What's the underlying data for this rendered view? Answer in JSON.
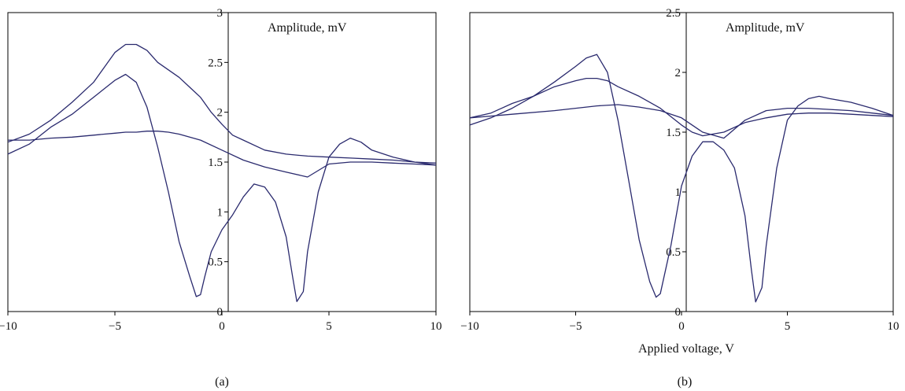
{
  "chart_data": [
    {
      "type": "line",
      "panel_label": "(a)",
      "annotation": "Amplitude, mV",
      "xlabel": "",
      "ylabel": "",
      "xlim": [
        -10,
        10
      ],
      "ylim": [
        0,
        3
      ],
      "xticks": [
        -10,
        -5,
        0,
        5,
        10
      ],
      "xtick_labels": [
        "−10",
        "−5",
        "0",
        "5",
        "10"
      ],
      "yticks": [
        0,
        0.5,
        1,
        1.5,
        2,
        2.5,
        3
      ],
      "ytick_labels": [
        "0",
        "0.5",
        "1",
        "1.5",
        "2",
        "2.5",
        "3"
      ],
      "grid": false,
      "line_color": "#2a2a6e",
      "series": [
        {
          "x": [
            -10,
            -9,
            -8,
            -7,
            -6,
            -5.5,
            -5,
            -4.5,
            -4,
            -3.5,
            -3,
            -2.5,
            -2,
            -1,
            0,
            1,
            2,
            3,
            4,
            5,
            6,
            7,
            8,
            9,
            10
          ],
          "y": [
            1.72,
            1.72,
            1.74,
            1.75,
            1.77,
            1.78,
            1.79,
            1.8,
            1.8,
            1.81,
            1.81,
            1.8,
            1.78,
            1.72,
            1.62,
            1.52,
            1.45,
            1.4,
            1.35,
            1.48,
            1.5,
            1.5,
            1.49,
            1.48,
            1.47
          ]
        },
        {
          "x": [
            -10,
            -9,
            -8,
            -7,
            -6,
            -5.5,
            -5,
            -4.5,
            -4,
            -3.5,
            -3,
            -2,
            -1.5,
            -1,
            -0.5,
            0,
            0.5,
            1,
            2,
            3,
            4,
            5,
            6,
            7,
            8,
            9,
            10
          ],
          "y": [
            1.7,
            1.78,
            1.92,
            2.1,
            2.3,
            2.45,
            2.6,
            2.68,
            2.68,
            2.62,
            2.5,
            2.35,
            2.25,
            2.15,
            2.0,
            1.88,
            1.77,
            1.72,
            1.62,
            1.58,
            1.56,
            1.55,
            1.54,
            1.53,
            1.52,
            1.5,
            1.49
          ]
        },
        {
          "x": [
            -10,
            -9,
            -8,
            -7,
            -6,
            -5,
            -4.5,
            -4,
            -3.5,
            -3,
            -2.5,
            -2,
            -1.5,
            -1.2,
            -1,
            -0.8,
            -0.5,
            0,
            0.5,
            1,
            1.5,
            2,
            2.5,
            3,
            3.3,
            3.5,
            3.8,
            4,
            4.5,
            5,
            5.5,
            6,
            6.5,
            7,
            8,
            9,
            10
          ],
          "y": [
            1.58,
            1.68,
            1.85,
            1.98,
            2.15,
            2.32,
            2.38,
            2.3,
            2.05,
            1.65,
            1.2,
            0.7,
            0.35,
            0.15,
            0.17,
            0.35,
            0.6,
            0.82,
            0.97,
            1.15,
            1.28,
            1.25,
            1.1,
            0.75,
            0.35,
            0.1,
            0.2,
            0.6,
            1.2,
            1.55,
            1.68,
            1.74,
            1.7,
            1.62,
            1.55,
            1.5,
            1.47
          ]
        }
      ]
    },
    {
      "type": "line",
      "panel_label": "(b)",
      "annotation": "Amplitude, mV",
      "xlabel": "Applied voltage, V",
      "ylabel": "",
      "xlim": [
        -10,
        10
      ],
      "ylim": [
        0,
        2.5
      ],
      "xticks": [
        -10,
        -5,
        0,
        5,
        10
      ],
      "xtick_labels": [
        "−10",
        "−5",
        "0",
        "5",
        "10"
      ],
      "yticks": [
        0,
        0.5,
        1,
        1.5,
        2,
        2.5
      ],
      "ytick_labels": [
        "0",
        "0.5",
        "1",
        "1.5",
        "2",
        "2.5"
      ],
      "grid": false,
      "line_color": "#2a2a6e",
      "series": [
        {
          "x": [
            -10,
            -8,
            -6,
            -5,
            -4,
            -3,
            -2,
            -1,
            0,
            1,
            2,
            3,
            4,
            5,
            6,
            7,
            8,
            9,
            10
          ],
          "y": [
            1.62,
            1.65,
            1.68,
            1.7,
            1.72,
            1.73,
            1.71,
            1.68,
            1.62,
            1.5,
            1.45,
            1.6,
            1.68,
            1.7,
            1.7,
            1.69,
            1.68,
            1.66,
            1.64
          ]
        },
        {
          "x": [
            -10,
            -9,
            -8,
            -7,
            -6,
            -5,
            -4.5,
            -4,
            -3.5,
            -3,
            -2,
            -1,
            0,
            0.5,
            1,
            2,
            3,
            4,
            5,
            6,
            7,
            8,
            9,
            10
          ],
          "y": [
            1.62,
            1.66,
            1.74,
            1.8,
            1.88,
            1.93,
            1.95,
            1.95,
            1.93,
            1.88,
            1.8,
            1.7,
            1.56,
            1.5,
            1.47,
            1.5,
            1.58,
            1.62,
            1.65,
            1.66,
            1.66,
            1.65,
            1.64,
            1.63
          ]
        },
        {
          "x": [
            -10,
            -9,
            -8,
            -7,
            -6,
            -5,
            -4.5,
            -4,
            -3.5,
            -3,
            -2.5,
            -2,
            -1.5,
            -1.2,
            -1,
            -0.5,
            0,
            0.5,
            1,
            1.5,
            2,
            2.5,
            3,
            3.3,
            3.5,
            3.8,
            4,
            4.5,
            5,
            5.5,
            6,
            6.5,
            7,
            8,
            9,
            10
          ],
          "y": [
            1.56,
            1.62,
            1.7,
            1.8,
            1.92,
            2.05,
            2.12,
            2.15,
            2.0,
            1.6,
            1.1,
            0.6,
            0.25,
            0.12,
            0.15,
            0.55,
            1.05,
            1.3,
            1.42,
            1.42,
            1.35,
            1.2,
            0.8,
            0.35,
            0.08,
            0.2,
            0.55,
            1.2,
            1.6,
            1.72,
            1.78,
            1.8,
            1.78,
            1.75,
            1.7,
            1.64
          ]
        }
      ]
    }
  ]
}
